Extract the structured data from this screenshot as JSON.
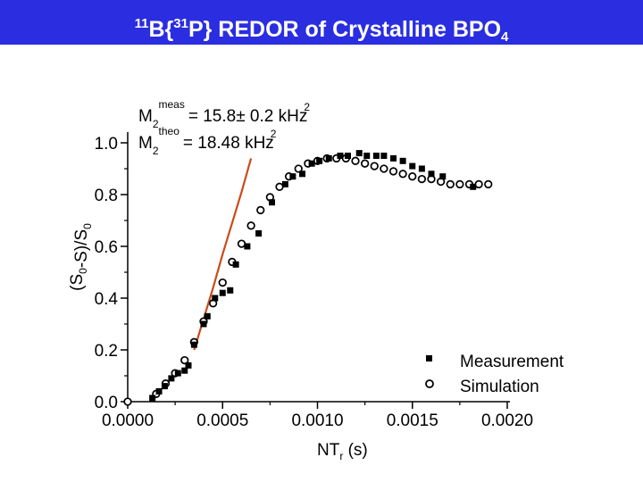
{
  "header": {
    "title_pre": "11",
    "title_b": "B{",
    "title_sup2": "31",
    "title_mid": "P} REDOR of Crystalline BPO",
    "title_sub": "4",
    "background": "#2a2ee0",
    "text_color": "#ffffff"
  },
  "annotations": {
    "meas_base": "M",
    "meas_sub": "2",
    "meas_sup": "meas",
    "meas_value": "= 15.8± 0.2 kHz",
    "meas_unit_sup": "2",
    "theo_base": "M",
    "theo_sub": "2",
    "theo_sup": "theo",
    "theo_value": "= 18.48 kHz",
    "theo_unit_sup": "2"
  },
  "chart_data": {
    "type": "scatter",
    "title": "11B{31P} REDOR of Crystalline BPO4",
    "xlabel": "NTr (s)",
    "ylabel": "(S0-S)/S0",
    "xlim": [
      0,
      0.002
    ],
    "ylim": [
      0,
      1.0
    ],
    "x_ticks": [
      "0.0000",
      "0.0005",
      "0.0010",
      "0.0015",
      "0.0020"
    ],
    "y_ticks": [
      "0.0",
      "0.2",
      "0.4",
      "0.6",
      "0.8",
      "1.0"
    ],
    "legend_position": "bottom-right",
    "series": [
      {
        "name": "Measurement",
        "marker": "filled-square",
        "color": "#000000",
        "x": [
          0.00013,
          0.000165,
          0.000195,
          0.00023,
          0.000265,
          0.0003,
          0.00032,
          0.00035,
          0.0004,
          0.00042,
          0.00046,
          0.0005,
          0.00054,
          0.00057,
          0.00063,
          0.00069,
          0.00076,
          0.00083,
          0.00087,
          0.00092,
          0.00097,
          0.00101,
          0.00106,
          0.00112,
          0.00116,
          0.00122,
          0.00126,
          0.00131,
          0.00135,
          0.0014,
          0.00145,
          0.0015,
          0.00155,
          0.0016,
          0.00166,
          0.00182
        ],
        "y": [
          0.014,
          0.04,
          0.06,
          0.09,
          0.11,
          0.12,
          0.14,
          0.22,
          0.3,
          0.33,
          0.4,
          0.42,
          0.43,
          0.53,
          0.6,
          0.65,
          0.77,
          0.84,
          0.87,
          0.88,
          0.92,
          0.93,
          0.94,
          0.95,
          0.95,
          0.96,
          0.95,
          0.95,
          0.95,
          0.94,
          0.93,
          0.91,
          0.9,
          0.88,
          0.87,
          0.83
        ]
      },
      {
        "name": "Simulation",
        "marker": "open-circle",
        "color": "#000000",
        "x": [
          0.0,
          0.00015,
          0.0002,
          0.00025,
          0.0003,
          0.00035,
          0.0004,
          0.00045,
          0.0005,
          0.00055,
          0.0006,
          0.00065,
          0.0007,
          0.00075,
          0.0008,
          0.00085,
          0.0009,
          0.00095,
          0.001,
          0.00105,
          0.0011,
          0.00115,
          0.0012,
          0.00125,
          0.0013,
          0.00135,
          0.0014,
          0.00145,
          0.0015,
          0.00155,
          0.0016,
          0.00165,
          0.0017,
          0.00175,
          0.0018,
          0.00185,
          0.0019
        ],
        "y": [
          0.0,
          0.03,
          0.07,
          0.11,
          0.16,
          0.23,
          0.31,
          0.38,
          0.46,
          0.54,
          0.61,
          0.68,
          0.74,
          0.79,
          0.83,
          0.87,
          0.9,
          0.92,
          0.93,
          0.94,
          0.94,
          0.94,
          0.93,
          0.92,
          0.91,
          0.9,
          0.89,
          0.88,
          0.87,
          0.86,
          0.86,
          0.85,
          0.84,
          0.84,
          0.84,
          0.84,
          0.84
        ]
      },
      {
        "name": "",
        "type": "line",
        "color": "#cc4a1a",
        "x": [
          0.00035,
          0.0004,
          0.00045,
          0.0005,
          0.00055,
          0.0006,
          0.00065
        ],
        "y": [
          0.2,
          0.32,
          0.44,
          0.57,
          0.69,
          0.81,
          0.94
        ]
      }
    ]
  }
}
